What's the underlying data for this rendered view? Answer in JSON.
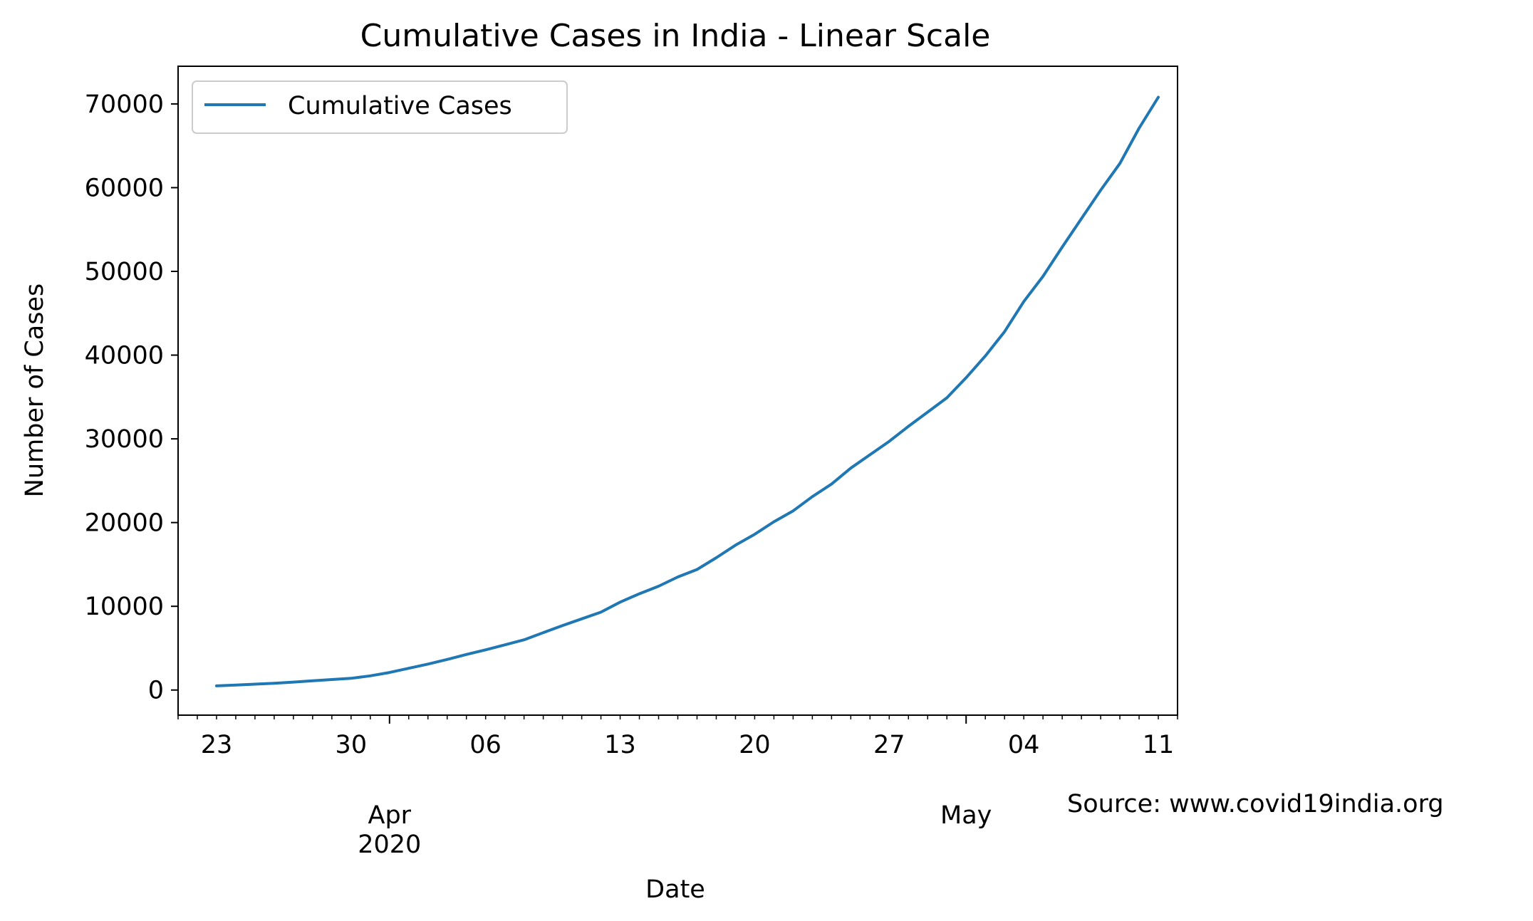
{
  "chart_data": {
    "type": "line",
    "title": "Cumulative Cases in India - Linear Scale",
    "xlabel": "Date",
    "ylabel": "Number of Cases",
    "source_note": "Source: www.covid19india.org",
    "legend": {
      "placement": "top-left",
      "label": "Cumulative Cases"
    },
    "grid": false,
    "colors": {
      "line": "#1f77b4",
      "axes": "#000000",
      "background": "#ffffff"
    },
    "xlim": [
      "2020-03-21",
      "2020-05-12"
    ],
    "ylim": [
      -3000,
      74500
    ],
    "y_ticks": [
      0,
      10000,
      20000,
      30000,
      40000,
      50000,
      60000,
      70000
    ],
    "y_tick_labels": [
      "0",
      "10000",
      "20000",
      "30000",
      "40000",
      "50000",
      "60000",
      "70000"
    ],
    "x_major_ticks": [
      {
        "date": "2020-03-23",
        "label": "23"
      },
      {
        "date": "2020-03-30",
        "label": "30"
      },
      {
        "date": "2020-04-06",
        "label": "06"
      },
      {
        "date": "2020-04-13",
        "label": "13"
      },
      {
        "date": "2020-04-20",
        "label": "20"
      },
      {
        "date": "2020-04-27",
        "label": "27"
      },
      {
        "date": "2020-05-04",
        "label": "04"
      },
      {
        "date": "2020-05-11",
        "label": "11"
      }
    ],
    "x_month_labels": [
      {
        "date": "2020-04-01",
        "month": "Apr",
        "year": "2020"
      },
      {
        "date": "2020-05-01",
        "month": "May",
        "year": ""
      }
    ],
    "series": [
      {
        "name": "Cumulative Cases",
        "color": "#1f77b4",
        "x": [
          "2020-03-23",
          "2020-03-24",
          "2020-03-25",
          "2020-03-26",
          "2020-03-27",
          "2020-03-28",
          "2020-03-29",
          "2020-03-30",
          "2020-03-31",
          "2020-04-01",
          "2020-04-02",
          "2020-04-03",
          "2020-04-04",
          "2020-04-05",
          "2020-04-06",
          "2020-04-07",
          "2020-04-08",
          "2020-04-09",
          "2020-04-10",
          "2020-04-11",
          "2020-04-12",
          "2020-04-13",
          "2020-04-14",
          "2020-04-15",
          "2020-04-16",
          "2020-04-17",
          "2020-04-18",
          "2020-04-19",
          "2020-04-20",
          "2020-04-21",
          "2020-04-22",
          "2020-04-23",
          "2020-04-24",
          "2020-04-25",
          "2020-04-26",
          "2020-04-27",
          "2020-04-28",
          "2020-04-29",
          "2020-04-30",
          "2020-05-01",
          "2020-05-02",
          "2020-05-03",
          "2020-05-04",
          "2020-05-05",
          "2020-05-06",
          "2020-05-07",
          "2020-05-08",
          "2020-05-09",
          "2020-05-10",
          "2020-05-11"
        ],
        "y": [
          500,
          600,
          700,
          800,
          950,
          1100,
          1250,
          1400,
          1700,
          2100,
          2600,
          3100,
          3650,
          4250,
          4800,
          5400,
          6000,
          6850,
          7700,
          8500,
          9300,
          10500,
          11500,
          12400,
          13500,
          14400,
          15800,
          17300,
          18600,
          20100,
          21400,
          23100,
          24600,
          26500,
          28100,
          29700,
          31500,
          33200,
          34900,
          37300,
          39900,
          42800,
          46400,
          49400,
          52900,
          56300,
          59700,
          62900,
          67100,
          70800
        ]
      }
    ]
  }
}
